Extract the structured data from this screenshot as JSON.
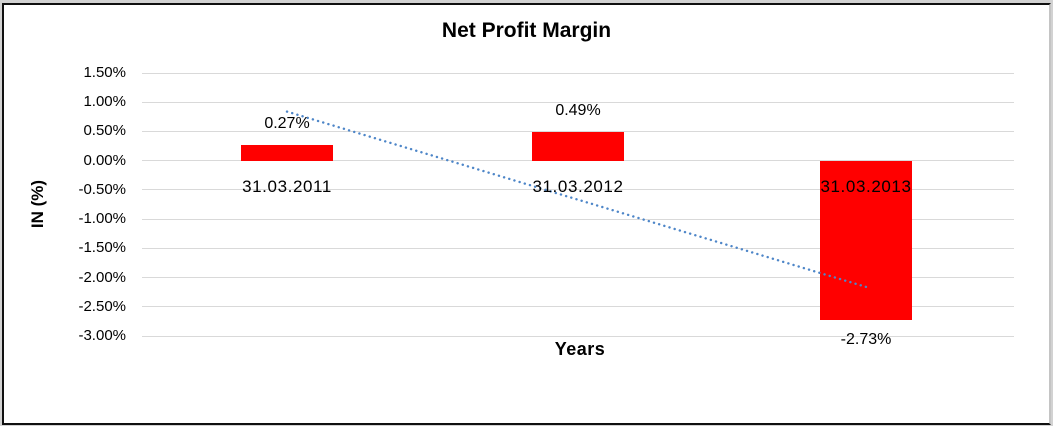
{
  "chart_data": {
    "type": "bar",
    "title": "Net Profit Margin",
    "xlabel": "Years",
    "ylabel": "IN (%)",
    "categories": [
      "31.03.2011",
      "31.03.2012",
      "31.03.2013"
    ],
    "series": [
      {
        "name": "Net Profit Margin",
        "values": [
          0.27,
          0.49,
          -2.73
        ]
      }
    ],
    "data_labels": [
      "0.27%",
      "0.49%",
      "-2.73%"
    ],
    "y_ticks": [
      "1.50%",
      "1.00%",
      "0.50%",
      "0.00%",
      "-0.50%",
      "-1.00%",
      "-1.50%",
      "-2.00%",
      "-2.50%",
      "-3.00%"
    ],
    "ylim": [
      -3.0,
      1.5
    ],
    "grid": true,
    "legend": "none",
    "bar_color": "#ff0000",
    "grid_color": "#d9d9d9",
    "trendline": {
      "style": "dotted",
      "color": "#4e86c8",
      "start_value": 0.84,
      "end_value": -2.16
    }
  }
}
